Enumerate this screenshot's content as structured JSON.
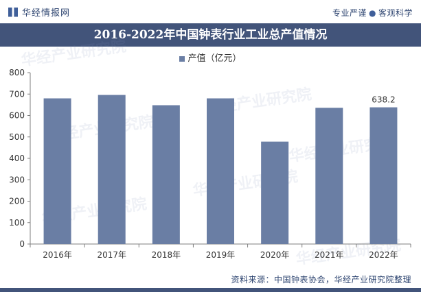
{
  "header": {
    "logo_text": "华经情报网",
    "tagline_left": "专业严谨",
    "tagline_right": "客观科学"
  },
  "watermark": "华经产业研究院",
  "colors": {
    "bar": "#6a7ea4",
    "title_bg": "#42547a",
    "text_dark": "#2d4470"
  },
  "source": "资料来源：中国钟表协会，华经产业研究院整理",
  "chart_data": {
    "type": "bar",
    "title": "2016-2022年中国钟表行业工业总产值情况",
    "categories": [
      "2016年",
      "2017年",
      "2018年",
      "2019年",
      "2020年",
      "2021年",
      "2022年"
    ],
    "series": [
      {
        "name": "产值（亿元）",
        "values": [
          680,
          696,
          648,
          680,
          478,
          636,
          638.2
        ]
      }
    ],
    "data_labels": [
      null,
      null,
      null,
      null,
      null,
      null,
      "638.2"
    ],
    "ylim": [
      0,
      800
    ],
    "yticks": [
      0,
      100,
      200,
      300,
      400,
      500,
      600,
      700,
      800
    ],
    "legend_position": "top-center",
    "grid": false
  }
}
